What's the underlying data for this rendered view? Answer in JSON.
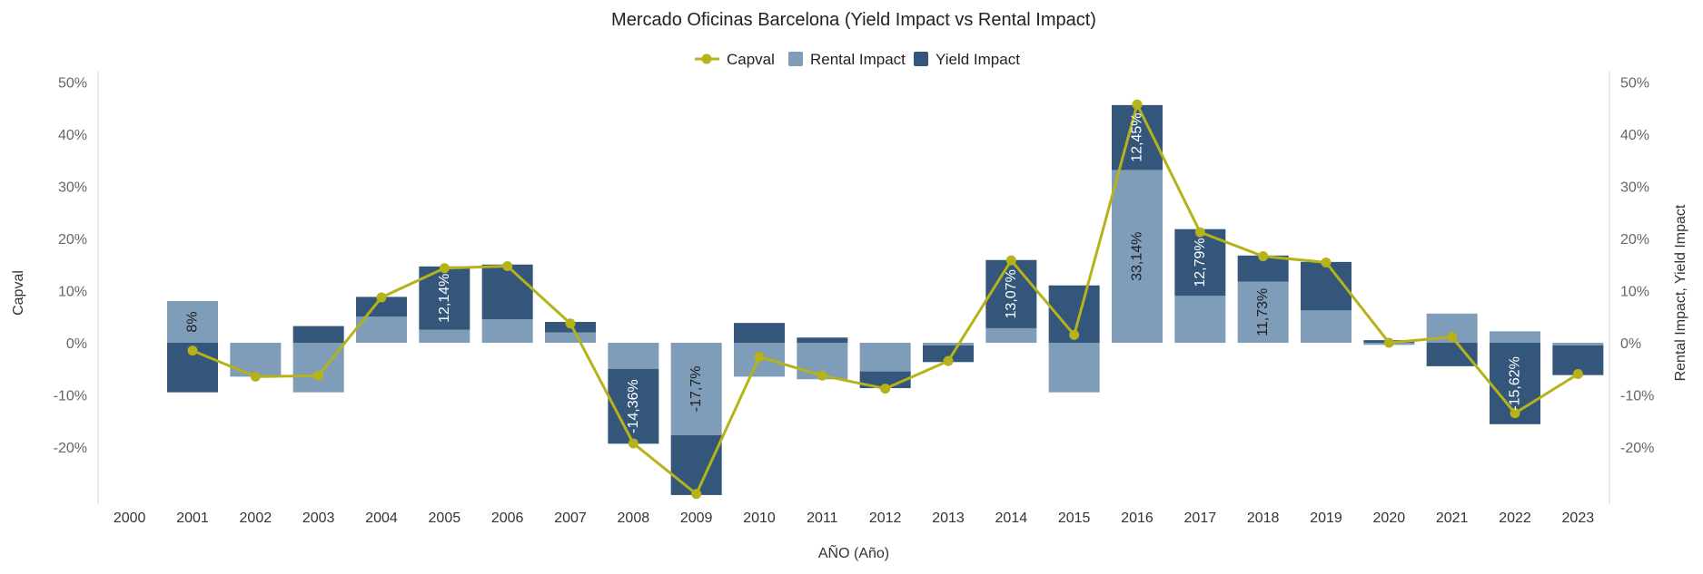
{
  "chart_data": {
    "type": "bar+line",
    "title": "Mercado Oficinas Barcelona (Yield Impact vs Rental Impact)",
    "xlabel": "AÑO (Año)",
    "ylabel_left": "Capval",
    "ylabel_right": "Rental Impact, Yield Impact",
    "ylim": [
      -30,
      50
    ],
    "y_ticks": [
      "50%",
      "40%",
      "30%",
      "20%",
      "10%",
      "0%",
      "-10%",
      "-20%"
    ],
    "categories": [
      "2000",
      "2001",
      "2002",
      "2003",
      "2004",
      "2005",
      "2006",
      "2007",
      "2008",
      "2009",
      "2010",
      "2011",
      "2012",
      "2013",
      "2014",
      "2015",
      "2016",
      "2017",
      "2018",
      "2019",
      "2020",
      "2021",
      "2022",
      "2023"
    ],
    "legend": [
      "Capval",
      "Rental Impact",
      "Yield Impact"
    ],
    "colors": {
      "capval": "#b5b21a",
      "rental": "#7f9cb8",
      "yield": "#33567a"
    },
    "series": [
      {
        "name": "Rental Impact",
        "values": [
          null,
          8,
          -6.5,
          -9.5,
          5,
          2.5,
          4.5,
          2,
          -5,
          -17.7,
          -6.5,
          -7,
          -5.5,
          -0.5,
          2.8,
          -9.5,
          33.14,
          9,
          11.73,
          6.2,
          -0.4,
          5.6,
          2.2,
          -0.5
        ]
      },
      {
        "name": "Yield Impact",
        "values": [
          null,
          -9.5,
          0,
          3.2,
          3.8,
          12.14,
          10.5,
          2,
          -14.36,
          -11.5,
          3.8,
          1,
          -3.2,
          -3.2,
          13.07,
          11,
          12.45,
          12.79,
          5,
          9.3,
          0.5,
          -4.5,
          -15.62,
          -5.7
        ]
      },
      {
        "name": "Capval",
        "values": [
          null,
          -1.5,
          -6.5,
          -6.3,
          8.7,
          14.3,
          14.7,
          3.7,
          -19.3,
          -29,
          -2.7,
          -6.3,
          -8.8,
          -3.5,
          15.8,
          1.5,
          45.7,
          21.2,
          16.6,
          15.4,
          0,
          1.1,
          -13.5,
          -6
        ]
      }
    ],
    "data_labels": [
      {
        "x": "2001",
        "series": "Rental Impact",
        "text": "8%"
      },
      {
        "x": "2005",
        "series": "Yield Impact",
        "text": "12,14%"
      },
      {
        "x": "2008",
        "series": "Yield Impact",
        "text": "-14,36%"
      },
      {
        "x": "2009",
        "series": "Rental Impact",
        "text": "-17,7%"
      },
      {
        "x": "2014",
        "series": "Yield Impact",
        "text": "13,07%"
      },
      {
        "x": "2016",
        "series": "Rental Impact",
        "text": "33,14%"
      },
      {
        "x": "2016",
        "series": "Yield Impact",
        "text": "12,45%"
      },
      {
        "x": "2017",
        "series": "Yield Impact",
        "text": "12,79%"
      },
      {
        "x": "2018",
        "series": "Rental Impact",
        "text": "11,73%"
      },
      {
        "x": "2022",
        "series": "Yield Impact",
        "text": "-15,62%"
      }
    ]
  }
}
